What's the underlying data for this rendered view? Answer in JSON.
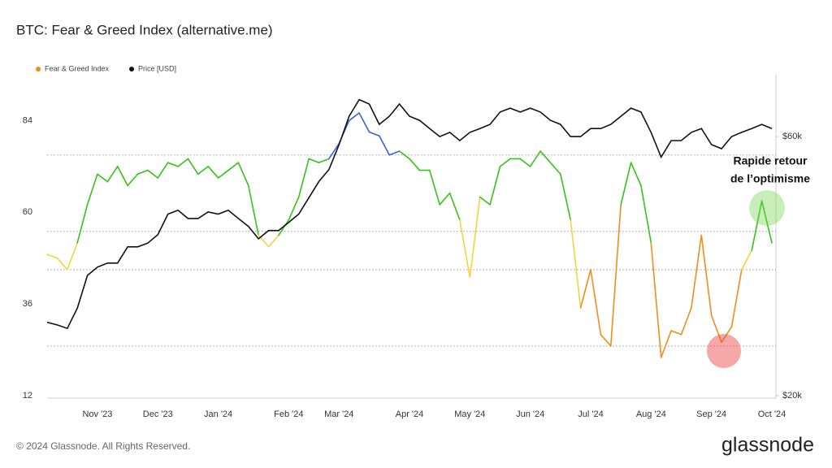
{
  "chart_data": {
    "type": "line",
    "title": "BTC: Fear & Greed Index (alternative.me)",
    "categories": [
      null,
      null,
      null,
      null,
      null,
      "Nov '23",
      null,
      null,
      null,
      null,
      null,
      "Dec '23",
      null,
      null,
      null,
      null,
      null,
      "Jan '24",
      null,
      null,
      null,
      null,
      null,
      null,
      "Feb '24",
      null,
      null,
      null,
      null,
      "Mar '24",
      null,
      null,
      null,
      null,
      null,
      null,
      "Apr '24",
      null,
      null,
      null,
      null,
      null,
      "May '24",
      null,
      null,
      null,
      null,
      null,
      "Jun '24",
      null,
      null,
      null,
      null,
      null,
      "Jul '24",
      null,
      null,
      null,
      null,
      null,
      "Aug '24",
      null,
      null,
      null,
      null,
      null,
      "Sep '24",
      null,
      null,
      null,
      null,
      null,
      "Oct '24"
    ],
    "series": [
      {
        "name": "Fear & Greed Index",
        "color": "#f28c1b",
        "axis": "y",
        "values": [
          49,
          48,
          45,
          52,
          62,
          70,
          68,
          72,
          67,
          70,
          71,
          69,
          73,
          72,
          74,
          70,
          72,
          69,
          71,
          73,
          67,
          54,
          51,
          54,
          58,
          64,
          74,
          73,
          74,
          78,
          84,
          86,
          81,
          80,
          75,
          76,
          74,
          71,
          71,
          62,
          65,
          58,
          43,
          64,
          62,
          72,
          74,
          74,
          72,
          76,
          73,
          70,
          58,
          35,
          45,
          28,
          25,
          62,
          73,
          67,
          52,
          22,
          29,
          28,
          35,
          54,
          33,
          26,
          30,
          45,
          50,
          63,
          52
        ]
      },
      {
        "name": "Price [USD]",
        "color": "#111111",
        "axis": "y2",
        "values": [
          27300,
          27000,
          26600,
          29000,
          33300,
          34500,
          35100,
          35100,
          37600,
          37600,
          38200,
          39600,
          43200,
          43900,
          42400,
          42400,
          43600,
          43200,
          43900,
          42400,
          41000,
          38900,
          40300,
          40300,
          41700,
          43200,
          46300,
          49600,
          52200,
          58000,
          65400,
          70200,
          68900,
          63200,
          65400,
          68900,
          65400,
          64300,
          62100,
          60000,
          61100,
          59000,
          61100,
          62100,
          63200,
          66600,
          67700,
          66600,
          67700,
          66600,
          64300,
          63200,
          60000,
          60000,
          62100,
          62100,
          63200,
          65400,
          67700,
          66600,
          61100,
          55000,
          59000,
          59000,
          61100,
          62100,
          58000,
          57000,
          60000,
          61100,
          62100,
          63200,
          62100
        ]
      }
    ],
    "ylim": [
      12,
      96
    ],
    "yticks": [
      12,
      36,
      60,
      84
    ],
    "y2lim": [
      20000,
      78000
    ],
    "y2log": true,
    "y2ticks": [
      {
        "value": 20000,
        "label": "$20k"
      },
      {
        "value": 60000,
        "label": "$60k"
      }
    ],
    "reference_lines": [
      25,
      45,
      55,
      75
    ],
    "zone_colors": [
      "#e53935",
      "#f28c1b",
      "#f2d43d",
      "#35c21a",
      "#3b62e0"
    ],
    "annotation": [
      "Rapide retour",
      "de l’optimisme"
    ],
    "footer": "© 2024 Glassnode. All Rights Reserved.",
    "brand": "glassnode"
  }
}
